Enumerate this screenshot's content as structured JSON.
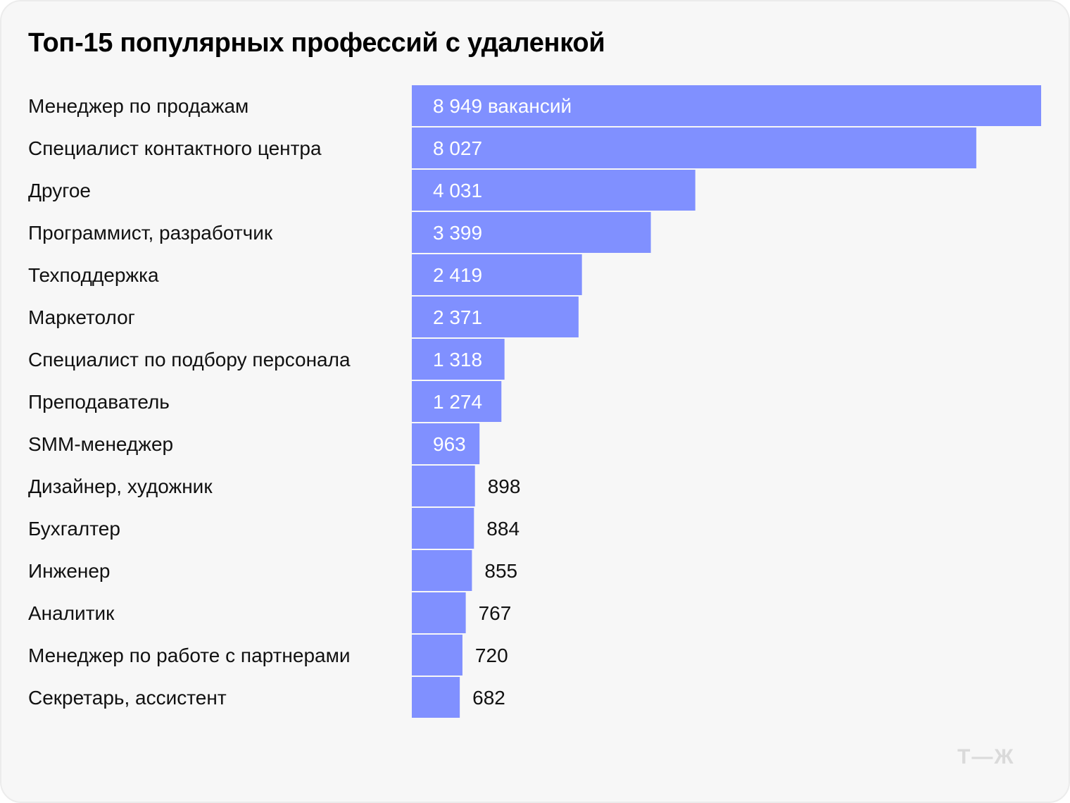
{
  "chart_data": {
    "type": "bar",
    "orientation": "horizontal",
    "title": "Топ-15 популярных профессий с удаленкой",
    "categories": [
      "Менеджер по продажам",
      "Специалист контактного центра",
      "Другое",
      "Программист, разработчик",
      "Техподдержка",
      "Маркетолог",
      "Специалист по подбору персонала",
      "Преподаватель",
      "SMM-менеджер",
      "Дизайнер, художник",
      "Бухгалтер",
      "Инженер",
      "Аналитик",
      "Менеджер по работе с партнерами",
      "Секретарь, ассистент"
    ],
    "values": [
      8949,
      8027,
      4031,
      3399,
      2419,
      2371,
      1318,
      1274,
      963,
      898,
      884,
      855,
      767,
      720,
      682
    ],
    "value_labels": [
      "8 949 вакансий",
      "8 027",
      "4 031",
      "3 399",
      "2 419",
      "2 371",
      "1 318",
      "1 274",
      "963",
      "898",
      "884",
      "855",
      "767",
      "720",
      "682"
    ],
    "xlim": [
      0,
      8949
    ],
    "grid": false,
    "bar_color": "#8090ff"
  },
  "logo": "Т—Ж"
}
